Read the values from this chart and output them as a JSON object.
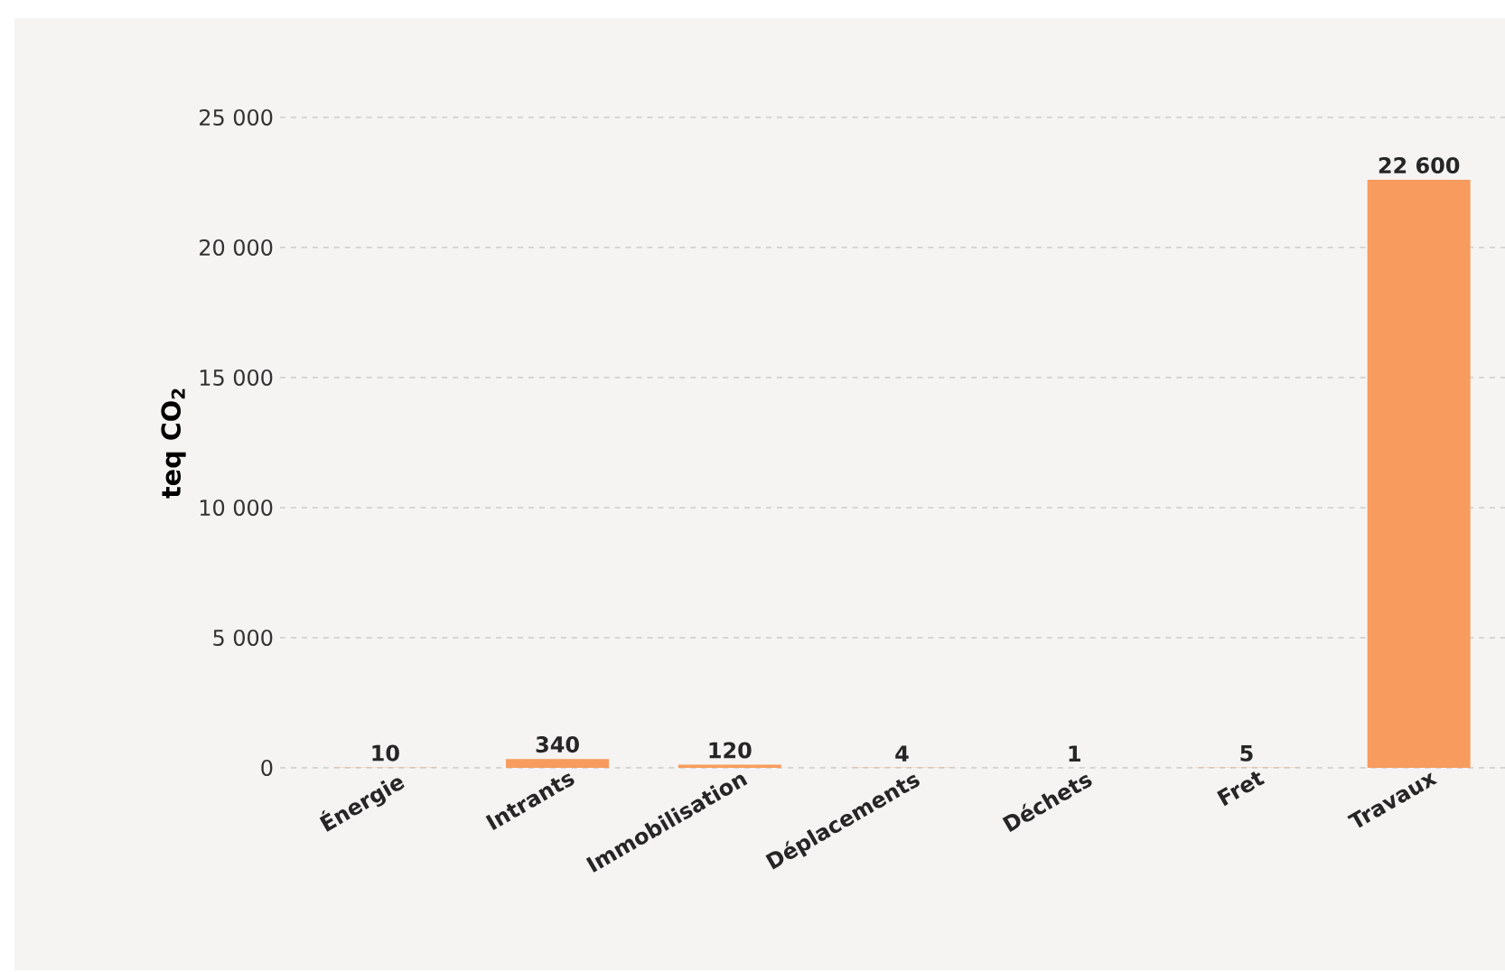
{
  "chart_data": {
    "type": "bar",
    "ylabel": "teq CO$_{2}$",
    "categories": [
      "Énergie",
      "Intrants",
      "Immobilisation",
      "Déplacements",
      "Déchets",
      "Fret",
      "Travaux"
    ],
    "values": [
      10,
      340,
      120,
      4,
      1,
      5,
      22600
    ],
    "value_labels": [
      "10",
      "340",
      "120",
      "4",
      "1",
      "5",
      "22 600"
    ],
    "color": "#f79c5e",
    "ylim": [
      0,
      25000
    ],
    "yticks": [
      {
        "value": 0,
        "label": "0"
      },
      {
        "value": 5000,
        "label": "5 000"
      },
      {
        "value": 10000,
        "label": "10 000"
      },
      {
        "value": 15000,
        "label": "15 000"
      },
      {
        "value": 20000,
        "label": "20 000"
      },
      {
        "value": 25000,
        "label": "25 000"
      }
    ],
    "grid": "y"
  }
}
